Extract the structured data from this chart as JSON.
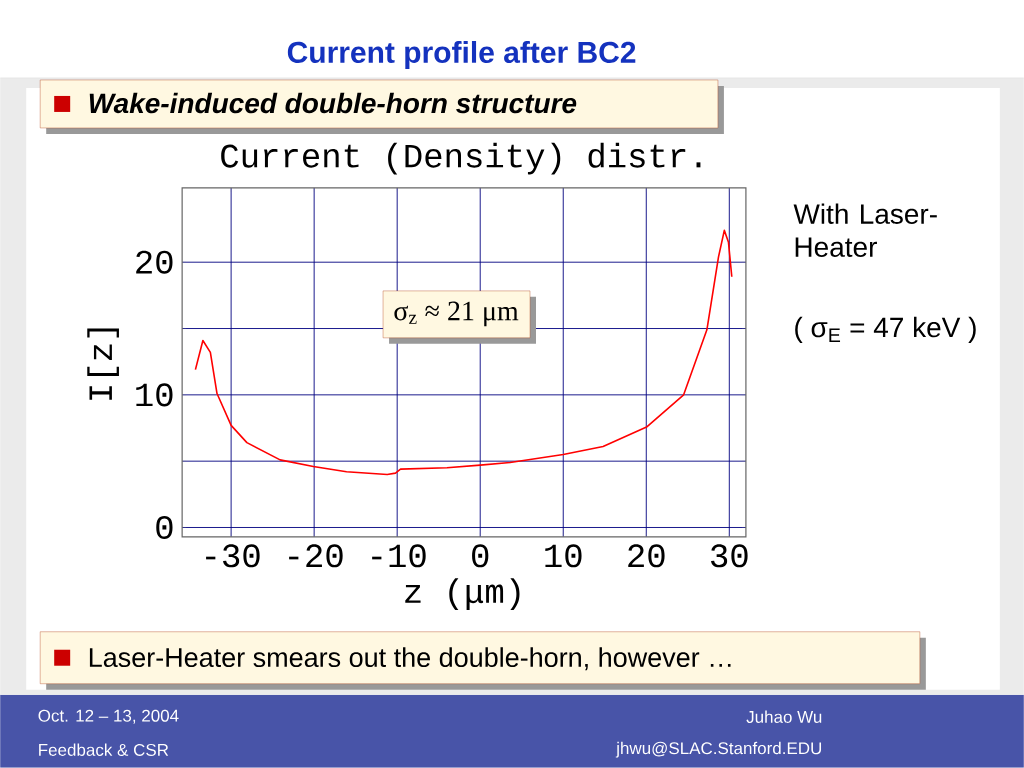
{
  "chart_data": {
    "type": "line",
    "title": "Current profile after BC2",
    "subtitle": "Wake-induced double-horn structure",
    "annotations": [
      "Current (Density) distr.",
      "σ$_{z}$ ≈ 21 μm",
      "With Laser-Heater",
      "( σ$_{E}$ = 47 keV )",
      "Laser-Heater smears out the double-horn, however …",
      "Oct. 12 – 13, 2004",
      "Feedback & CSR",
      "Juhao Wu",
      "jhwu@SLAC.Stanford.EDU"
    ],
    "xlabel": "z (μm)",
    "ylabel": "I[z]",
    "x": [
      -34.3,
      -33.4,
      -32.5,
      -31.7,
      -30.0,
      -28.1,
      -24.1,
      -20.1,
      -16.1,
      -11.2,
      -10.2,
      -9.6,
      -4.0,
      0.0,
      3.6,
      10.0,
      14.8,
      20.1,
      24.5,
      27.3,
      28.7,
      29.4,
      29.9,
      30.3
    ],
    "values": [
      11.9,
      14.1,
      13.2,
      10.1,
      7.7,
      6.4,
      5.1,
      4.6,
      4.2,
      4.0,
      4.1,
      4.4,
      4.5,
      4.7,
      4.9,
      5.5,
      6.1,
      7.6,
      10.0,
      14.9,
      20.4,
      22.4,
      21.5,
      18.9
    ],
    "color": "#ff0000",
    "xlim": [
      -35.9,
      32
    ],
    "ylim": [
      -0.7,
      25.6
    ],
    "xticks": [
      -30,
      -20,
      -10,
      0,
      10,
      20,
      30
    ],
    "yticks": [
      0,
      {
        "value": 5,
        "label": null
      },
      10,
      {
        "value": 15,
        "label": null
      },
      20
    ],
    "grid": true
  }
}
